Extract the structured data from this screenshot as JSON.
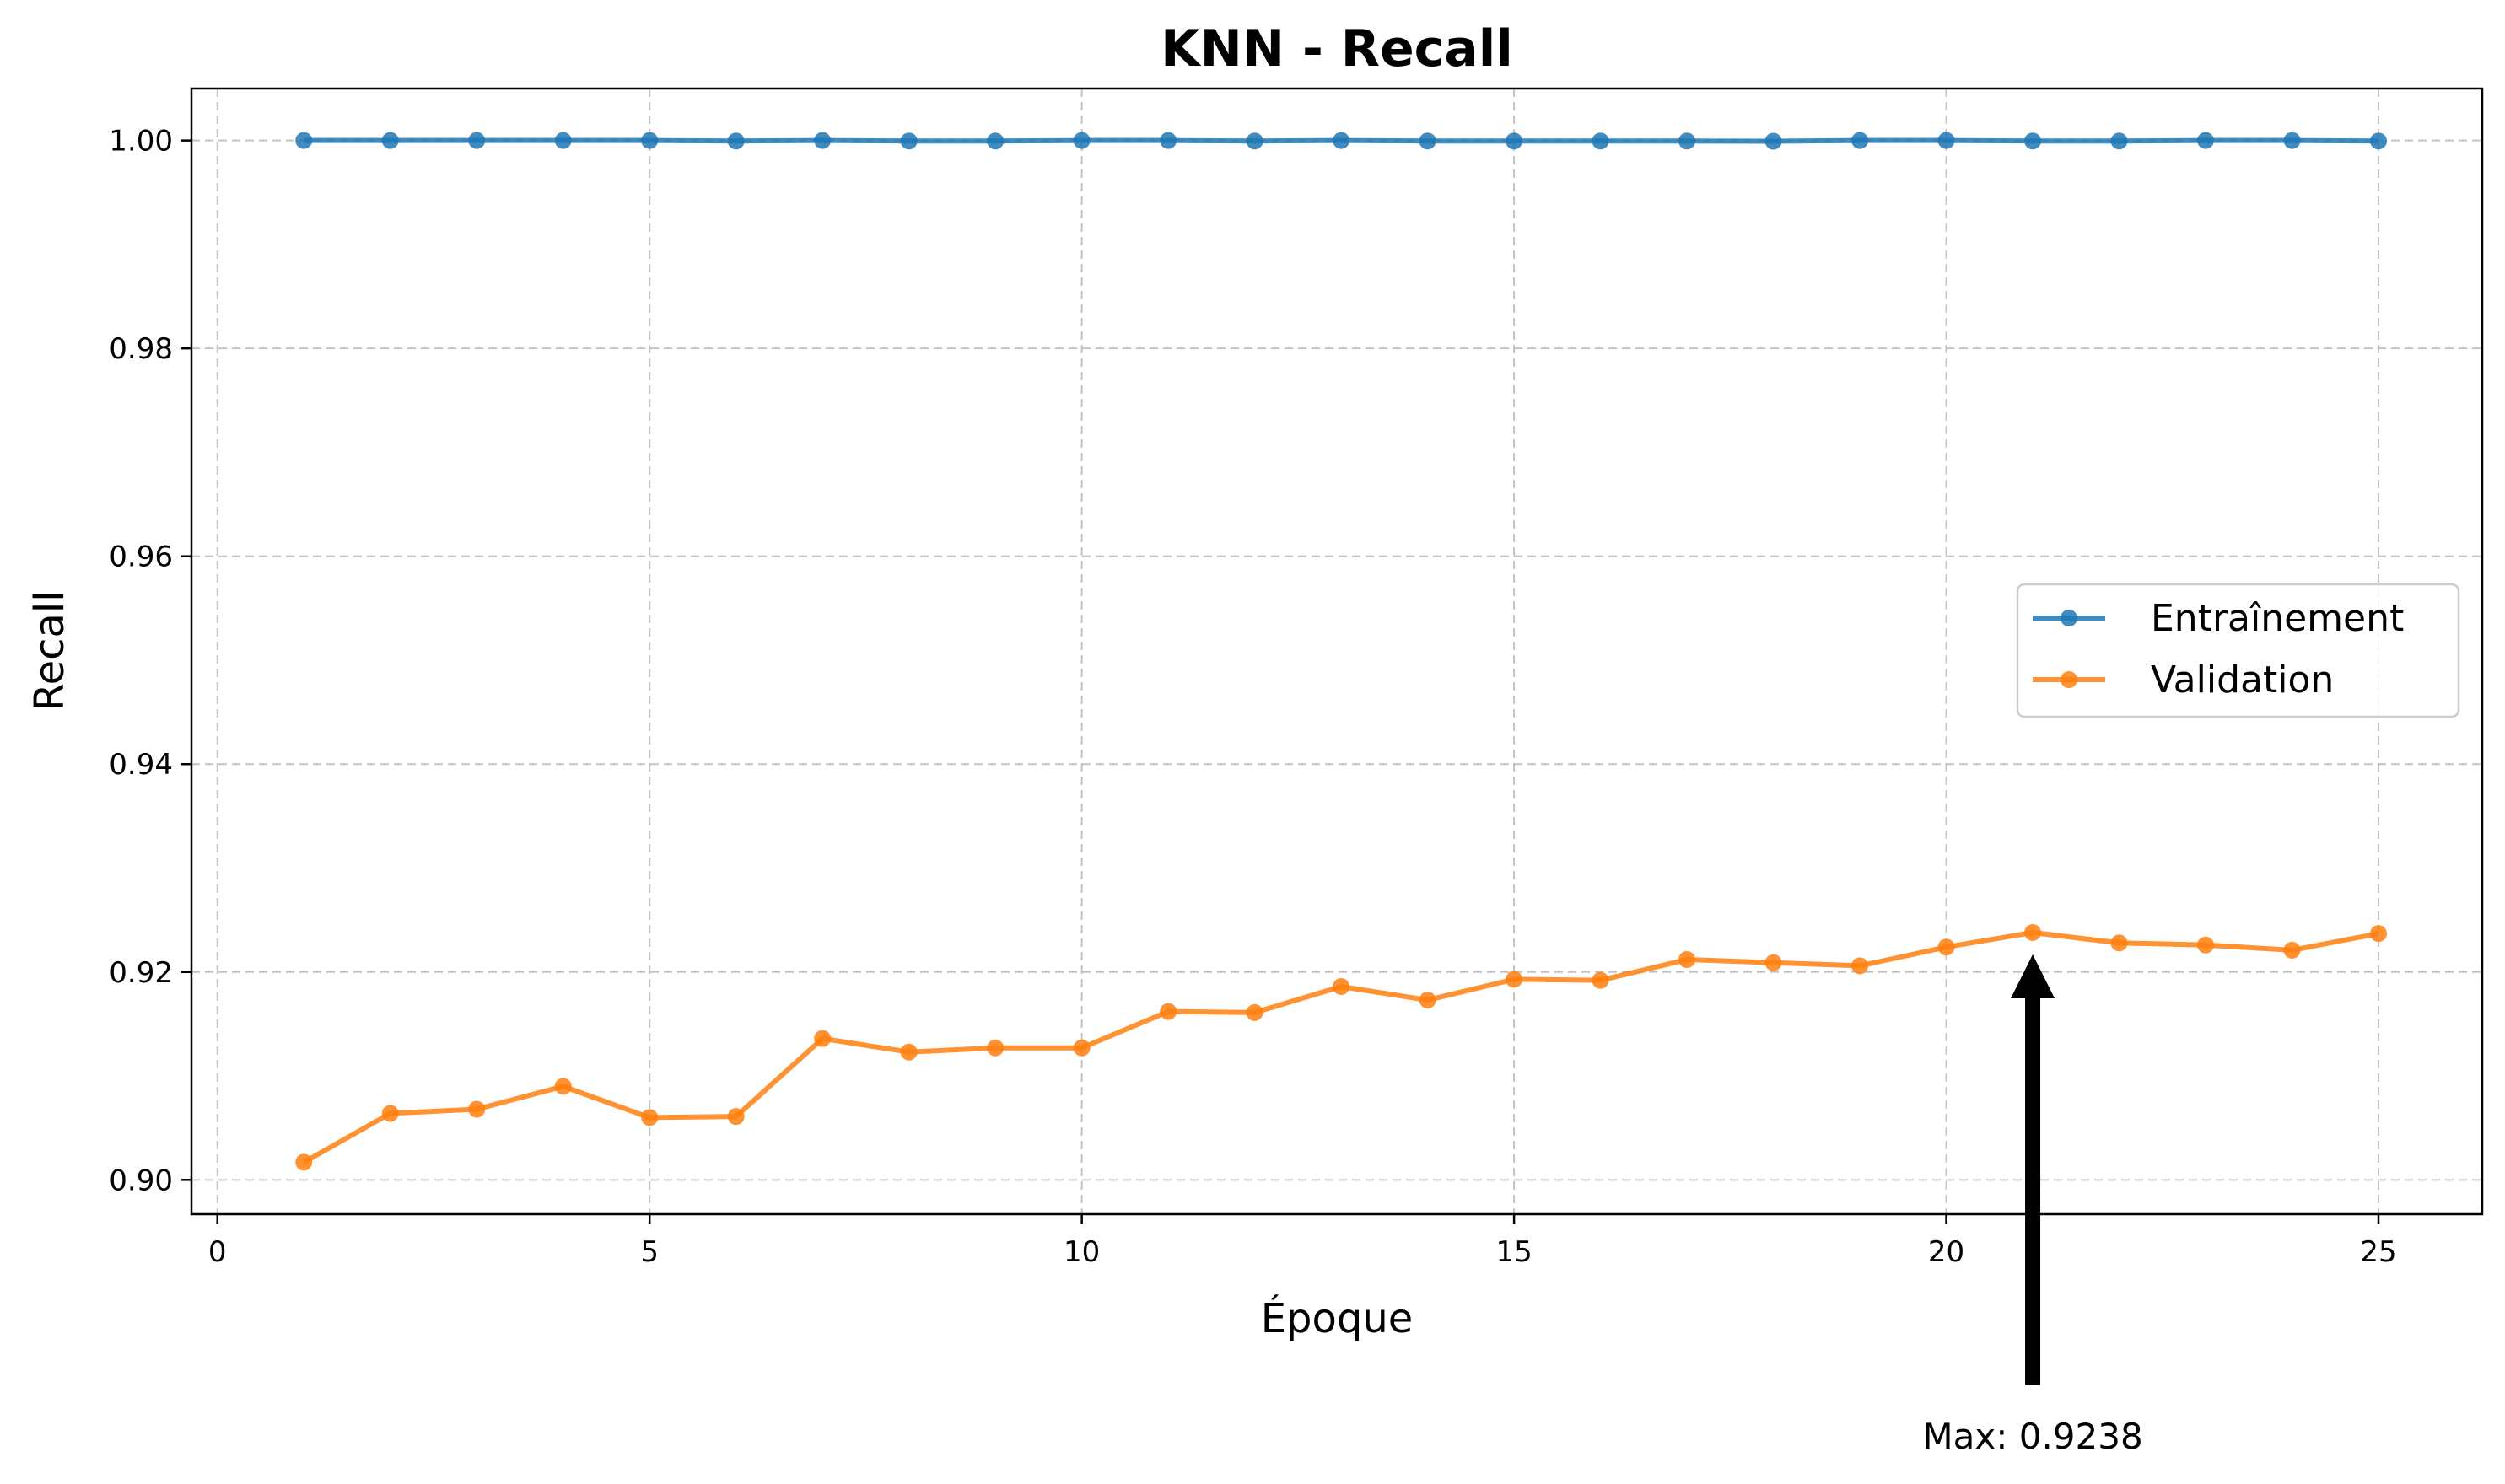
{
  "chart_data": {
    "type": "line",
    "title": "KNN - Recall",
    "xlabel": "Époque",
    "ylabel": "Recall",
    "xlim": [
      -0.3,
      26.2
    ],
    "ylim": [
      0.8967,
      1.005
    ],
    "xticks": [
      0,
      5,
      10,
      15,
      20,
      25
    ],
    "xtick_labels": [
      "0",
      "5",
      "10",
      "15",
      "20",
      "25"
    ],
    "yticks": [
      0.9,
      0.92,
      0.94,
      0.96,
      0.98,
      1.0
    ],
    "ytick_labels": [
      "0.90",
      "0.92",
      "0.94",
      "0.96",
      "0.98",
      "1.00"
    ],
    "grid": true,
    "legend_position": "center-right",
    "x": [
      1,
      2,
      3,
      4,
      5,
      6,
      7,
      8,
      9,
      10,
      11,
      12,
      13,
      14,
      15,
      16,
      17,
      18,
      19,
      20,
      21,
      22,
      23,
      24,
      25
    ],
    "series": [
      {
        "name": "Entraînement",
        "color": "#1f77b4",
        "values": [
          1.0,
          1.0,
          1.0,
          1.0,
          1.0,
          0.99995,
          1.0,
          0.99995,
          0.99995,
          1.0,
          1.0,
          0.99995,
          1.0,
          0.99995,
          0.99995,
          0.99995,
          0.99995,
          0.99993,
          1.0,
          1.0,
          0.99995,
          0.99995,
          1.0,
          1.0,
          0.99995
        ]
      },
      {
        "name": "Validation",
        "color": "#ff7f0e",
        "values": [
          0.9017,
          0.9064,
          0.9068,
          0.909,
          0.906,
          0.9061,
          0.9136,
          0.9123,
          0.9127,
          0.9127,
          0.9162,
          0.9161,
          0.9186,
          0.9173,
          0.9193,
          0.9192,
          0.9212,
          0.9209,
          0.9206,
          0.9224,
          0.9238,
          0.9228,
          0.9226,
          0.9221,
          0.9237
        ]
      }
    ],
    "annotation": {
      "text": "Max: 0.9238",
      "x": 21,
      "y": 0.9238
    }
  }
}
